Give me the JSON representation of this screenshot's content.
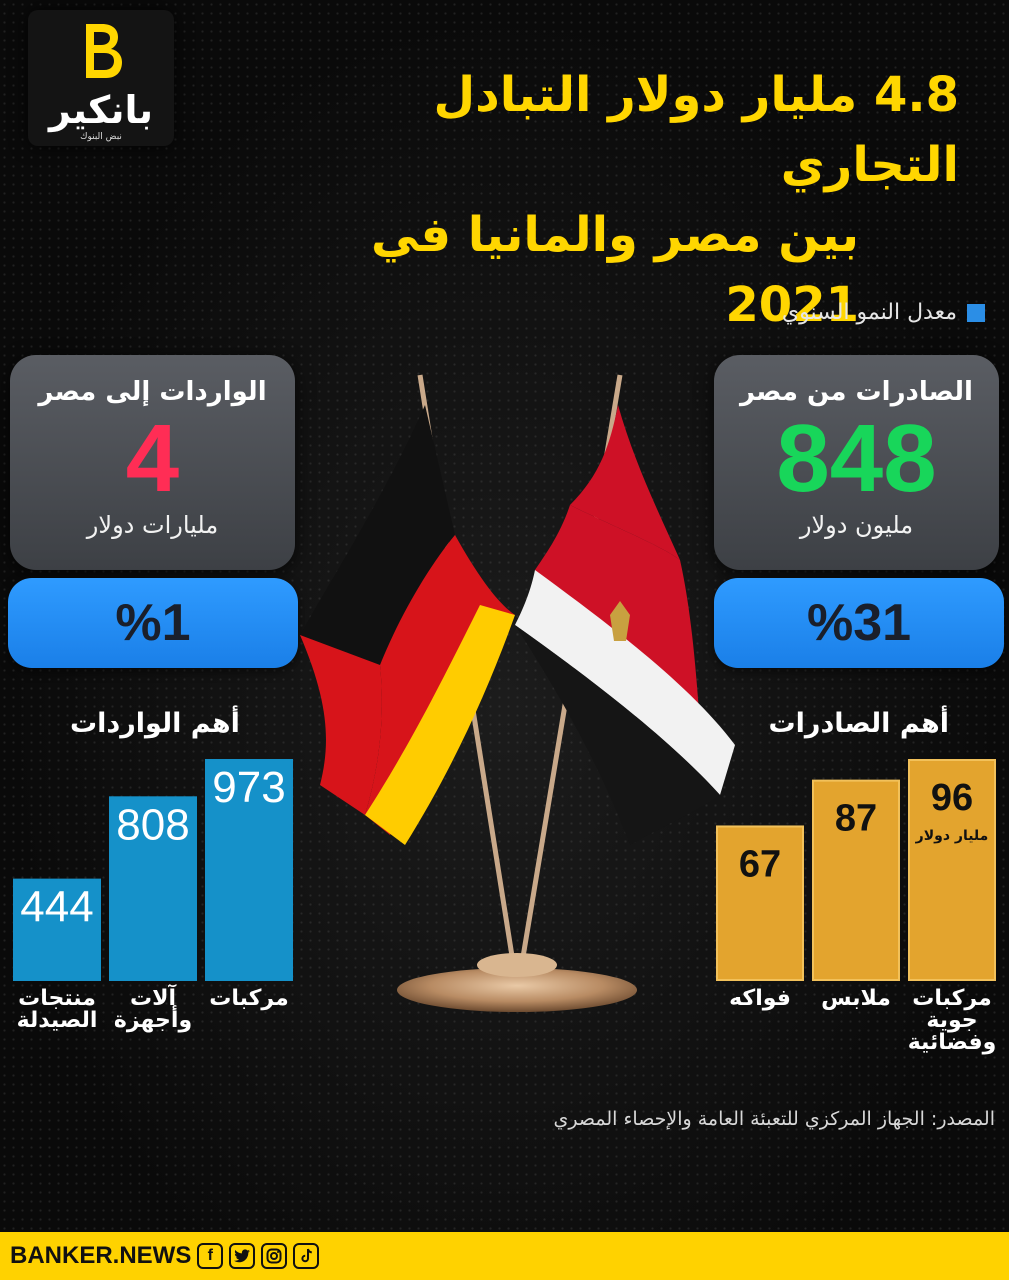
{
  "logo": {
    "text": "بانكير",
    "subtitle": "نبض البنوك"
  },
  "title": {
    "line1": "4.8 مليار دولار التبادل التجاري",
    "line2": "بين مصر والمانيا في 2021"
  },
  "legend": {
    "label": "معدل النمو السنوي",
    "color": "#2b8ee6"
  },
  "exports_card": {
    "title": "الصادرات من مصر",
    "value": "848",
    "unit": "مليون دولار",
    "value_color": "#18d65a",
    "growth": "%31"
  },
  "imports_card": {
    "title": "الواردات إلى مصر",
    "value": "4",
    "unit": "مليارات دولار",
    "value_color": "#ff2d55",
    "growth": "%1"
  },
  "chart_data": [
    {
      "type": "bar",
      "title": "أهم الصادرات",
      "categories": [
        "فواكه",
        "ملابس",
        "مركبات جوية وفضائية"
      ],
      "values": [
        67,
        87,
        96
      ],
      "value_labels": [
        "67",
        "87",
        "96"
      ],
      "unit_note": "مليار دولار",
      "bar_color": "#e3a42e"
    },
    {
      "type": "bar",
      "title": "أهم الواردات",
      "categories": [
        "منتجات الصيدلة",
        "آلات وأجهزة",
        "مركبات"
      ],
      "values": [
        444,
        808,
        973
      ],
      "value_labels": [
        "444",
        "808",
        "973"
      ],
      "bar_color": "#1591c9"
    }
  ],
  "source": "المصدر: الجهاز المركزي للتعبئة العامة والإحصاء المصري",
  "footer": {
    "brand": "BANKER.NEWS",
    "icons": [
      "facebook-icon",
      "twitter-icon",
      "instagram-icon",
      "tiktok-icon"
    ]
  }
}
